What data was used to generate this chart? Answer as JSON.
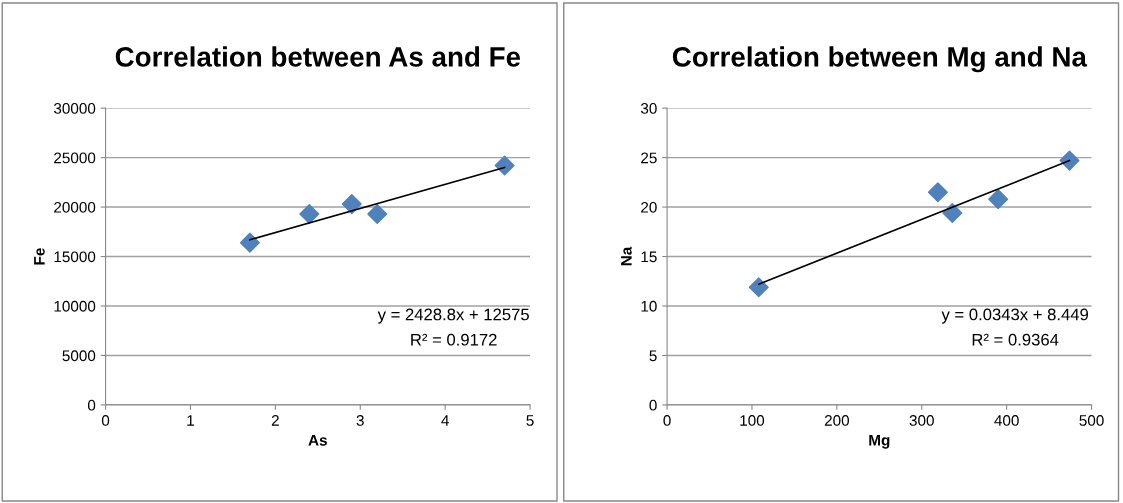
{
  "chart_data": [
    {
      "type": "scatter",
      "title": "Correlation between As and Fe",
      "xlabel": "As",
      "ylabel": "Fe",
      "xlim": [
        0,
        5
      ],
      "xticks": [
        0,
        1,
        2,
        3,
        4,
        5
      ],
      "ylim": [
        0,
        30000
      ],
      "yticks": [
        0,
        5000,
        10000,
        15000,
        20000,
        25000,
        30000
      ],
      "grid": "y",
      "marker": "diamond",
      "annotations": [
        "y = 2428.8x + 12575",
        "R² = 0.9172"
      ],
      "series": [
        {
          "color": "#4f81bd",
          "x": [
            1.7,
            2.4,
            2.9,
            3.2,
            4.7
          ],
          "values": [
            16400,
            19300,
            20300,
            19300,
            24200
          ]
        },
        {
          "type": "line",
          "color": "#000000",
          "marker": "none",
          "x": [
            1.7,
            4.7
          ],
          "values": [
            16700,
            24000
          ]
        }
      ]
    },
    {
      "type": "scatter",
      "title": "Correlation between Mg and Na",
      "xlabel": "Mg",
      "ylabel": "Na",
      "xlim": [
        0,
        500
      ],
      "xticks": [
        0,
        100,
        200,
        300,
        400,
        500
      ],
      "ylim": [
        0,
        30
      ],
      "yticks": [
        0,
        5,
        10,
        15,
        20,
        25,
        30
      ],
      "grid": "y",
      "marker": "diamond",
      "annotations": [
        "y = 0.0343x + 8.449",
        "R² = 0.9364"
      ],
      "series": [
        {
          "color": "#4f81bd",
          "x": [
            108,
            319,
            336,
            390,
            474
          ],
          "values": [
            11.9,
            21.5,
            19.4,
            20.8,
            24.7
          ]
        },
        {
          "type": "line",
          "color": "#000000",
          "marker": "none",
          "x": [
            108,
            474
          ],
          "values": [
            12.2,
            24.7
          ]
        }
      ]
    }
  ]
}
